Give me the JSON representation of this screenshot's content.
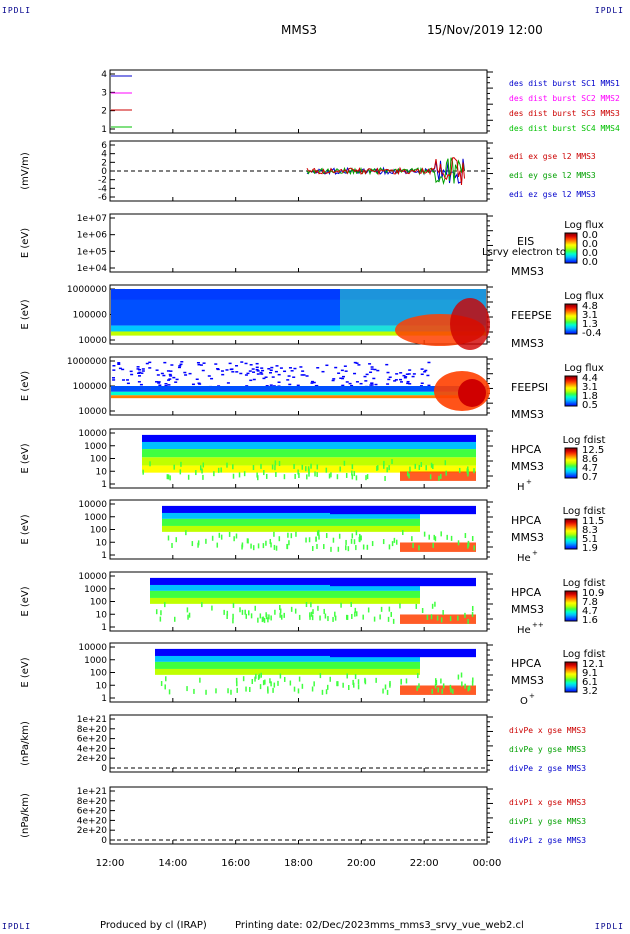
{
  "corners": {
    "tl": "IPDLI",
    "tr": "IPDLI",
    "bl": "IPDLI",
    "br": "IPDLI"
  },
  "header": {
    "spacecraft": "MMS3",
    "datetime": "15/Nov/2019 12:00"
  },
  "footer": {
    "produced": "Produced by cl (IRAP)",
    "printing": "Printing date: 02/Dec/2023",
    "script": "mms_mms3_srvy_vue_web2.cl"
  },
  "time_axis": {
    "ticks": [
      "12:00",
      "14:00",
      "16:00",
      "18:00",
      "20:00",
      "22:00",
      "00:00"
    ]
  },
  "colors": {
    "red": "#ff0000",
    "green": "#00c000",
    "blue": "#0000ff",
    "magenta": "#ff00ff"
  },
  "chart_data": [
    {
      "type": "line",
      "panel": "burst",
      "yticks": [
        "4",
        "3",
        "2",
        "1"
      ],
      "legend": [
        {
          "label": "des dist burst SC1 MMS1",
          "color": "#0000cc",
          "y": 4
        },
        {
          "label": "des dist burst SC2 MMS2",
          "color": "#ff00ff",
          "y": 3
        },
        {
          "label": "des dist burst SC3 MMS3",
          "color": "#cc0000",
          "y": 2
        },
        {
          "label": "des dist burst SC4 MMS4",
          "color": "#00c000",
          "y": 1
        }
      ]
    },
    {
      "type": "line",
      "panel": "edi",
      "ylabel": "(mV/m)",
      "yticks": [
        "6",
        "4",
        "2",
        "0",
        "-2",
        "-4",
        "-6"
      ],
      "legend": [
        {
          "label": "edi ex gse l2 MMS3",
          "color": "#cc0000"
        },
        {
          "label": "edi ey gse l2 MMS3",
          "color": "#00a000"
        },
        {
          "label": "edi ez gse l2 MMS3",
          "color": "#0000cc"
        }
      ]
    },
    {
      "type": "heatmap",
      "panel": "eis",
      "ylabel": "E (eV)",
      "yticks": [
        "1e+07",
        "1e+06",
        "1e+05",
        "1e+04"
      ],
      "name": "EIS",
      "overlay_text": "Lsrvy electron to",
      "sc": "MMS3",
      "colorbar": {
        "title": "Log flux",
        "ticks": [
          "0.0",
          "0.0",
          "0.0",
          "0.0"
        ]
      }
    },
    {
      "type": "heatmap",
      "panel": "feeps_e",
      "ylabel": "E (eV)",
      "yticks": [
        "1000000",
        "100000",
        "10000"
      ],
      "name": "FEEPSE",
      "sc": "MMS3",
      "colorbar": {
        "title": "Log flux",
        "ticks": [
          "4.8",
          "3.1",
          "1.3",
          "-0.4"
        ]
      }
    },
    {
      "type": "heatmap",
      "panel": "feeps_i",
      "ylabel": "E (eV)",
      "yticks": [
        "1000000",
        "100000",
        "10000"
      ],
      "name": "FEEPSI",
      "sc": "MMS3",
      "colorbar": {
        "title": "Log flux",
        "ticks": [
          "4.4",
          "3.1",
          "1.8",
          "0.5"
        ]
      }
    },
    {
      "type": "heatmap",
      "panel": "hpca_h",
      "ylabel": "E (eV)",
      "yticks": [
        "10000",
        "1000",
        "100",
        "10",
        "1"
      ],
      "name": "HPCA",
      "sc": "MMS3",
      "species": "H",
      "charge": "+",
      "colorbar": {
        "title": "Log fdist",
        "ticks": [
          "12.5",
          "8.6",
          "4.7",
          "0.7"
        ]
      }
    },
    {
      "type": "heatmap",
      "panel": "hpca_he",
      "ylabel": "E (eV)",
      "yticks": [
        "10000",
        "1000",
        "100",
        "10",
        "1"
      ],
      "name": "HPCA",
      "sc": "MMS3",
      "species": "He",
      "charge": "+",
      "colorbar": {
        "title": "Log fdist",
        "ticks": [
          "11.5",
          "8.3",
          "5.1",
          "1.9"
        ]
      }
    },
    {
      "type": "heatmap",
      "panel": "hpca_he2",
      "ylabel": "E (eV)",
      "yticks": [
        "10000",
        "1000",
        "100",
        "10",
        "1"
      ],
      "name": "HPCA",
      "sc": "MMS3",
      "species": "He",
      "charge": "++",
      "colorbar": {
        "title": "Log fdist",
        "ticks": [
          "10.9",
          "7.8",
          "4.7",
          "1.6"
        ]
      }
    },
    {
      "type": "heatmap",
      "panel": "hpca_o",
      "ylabel": "E (eV)",
      "yticks": [
        "10000",
        "1000",
        "100",
        "10",
        "1"
      ],
      "name": "HPCA",
      "sc": "MMS3",
      "species": "O",
      "charge": "+",
      "colorbar": {
        "title": "Log fdist",
        "ticks": [
          "12.1",
          "9.1",
          "6.1",
          "3.2"
        ]
      }
    },
    {
      "type": "line",
      "panel": "divpe",
      "ylabel": "(nPa/km)",
      "yticks": [
        "1e+21",
        "8e+20",
        "6e+20",
        "4e+20",
        "2e+20",
        "0"
      ],
      "legend": [
        {
          "label": "divPe x gse MMS3",
          "color": "#cc0000"
        },
        {
          "label": "divPe y gse MMS3",
          "color": "#00a000"
        },
        {
          "label": "divPe z gse MMS3",
          "color": "#0000cc"
        }
      ]
    },
    {
      "type": "line",
      "panel": "divpi",
      "ylabel": "(nPa/km)",
      "yticks": [
        "1e+21",
        "8e+20",
        "6e+20",
        "4e+20",
        "2e+20",
        "0"
      ],
      "legend": [
        {
          "label": "divPi x gse MMS3",
          "color": "#cc0000"
        },
        {
          "label": "divPi y gse MMS3",
          "color": "#00a000"
        },
        {
          "label": "divPi z gse MMS3",
          "color": "#0000cc"
        }
      ]
    }
  ]
}
